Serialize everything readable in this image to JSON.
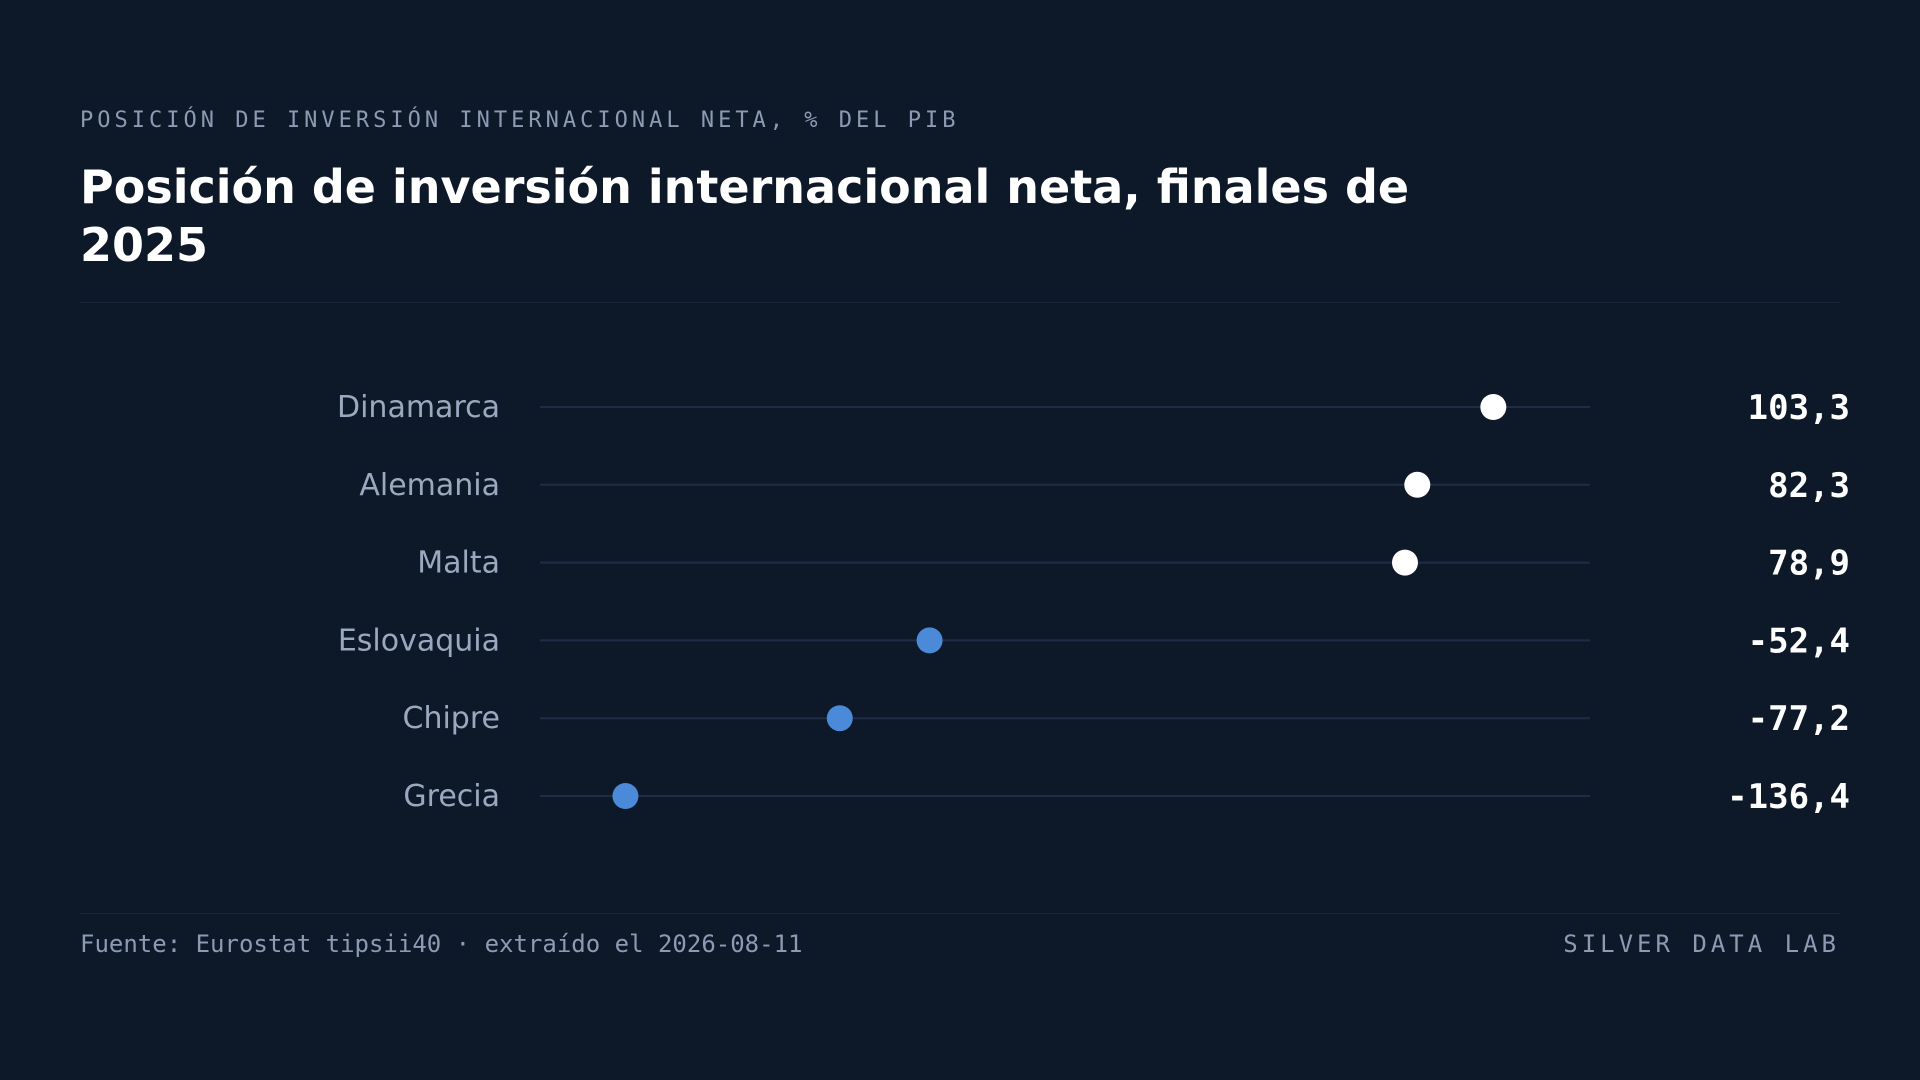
{
  "header": {
    "kicker": "POSICIÓN DE INVERSIÓN INTERNACIONAL NETA, % DEL PIB",
    "title": "Posición de inversión internacional neta, finales de 2025"
  },
  "footer": {
    "source": "Fuente: Eurostat tipsii40 · extraído el 2026-08-11",
    "brand": "SILVER DATA LAB"
  },
  "colors": {
    "background": "#0d1829",
    "positive_dot": "#ffffff",
    "negative_dot": "#4a8ad8",
    "track": "#1f2d44"
  },
  "chart_data": {
    "type": "dot",
    "title": "Posición de inversión internacional neta, finales de 2025",
    "categories": [
      "Dinamarca",
      "Alemania",
      "Malta",
      "Eslovaquia",
      "Chipre",
      "Grecia"
    ],
    "values": [
      103.3,
      82.3,
      78.9,
      -52.4,
      -77.2,
      -136.4
    ],
    "value_labels": [
      "103,3",
      "82,3",
      "78,9",
      "-52,4",
      "-77,2",
      "-136,4"
    ],
    "xlim": [
      -160,
      130
    ],
    "grid": false
  }
}
